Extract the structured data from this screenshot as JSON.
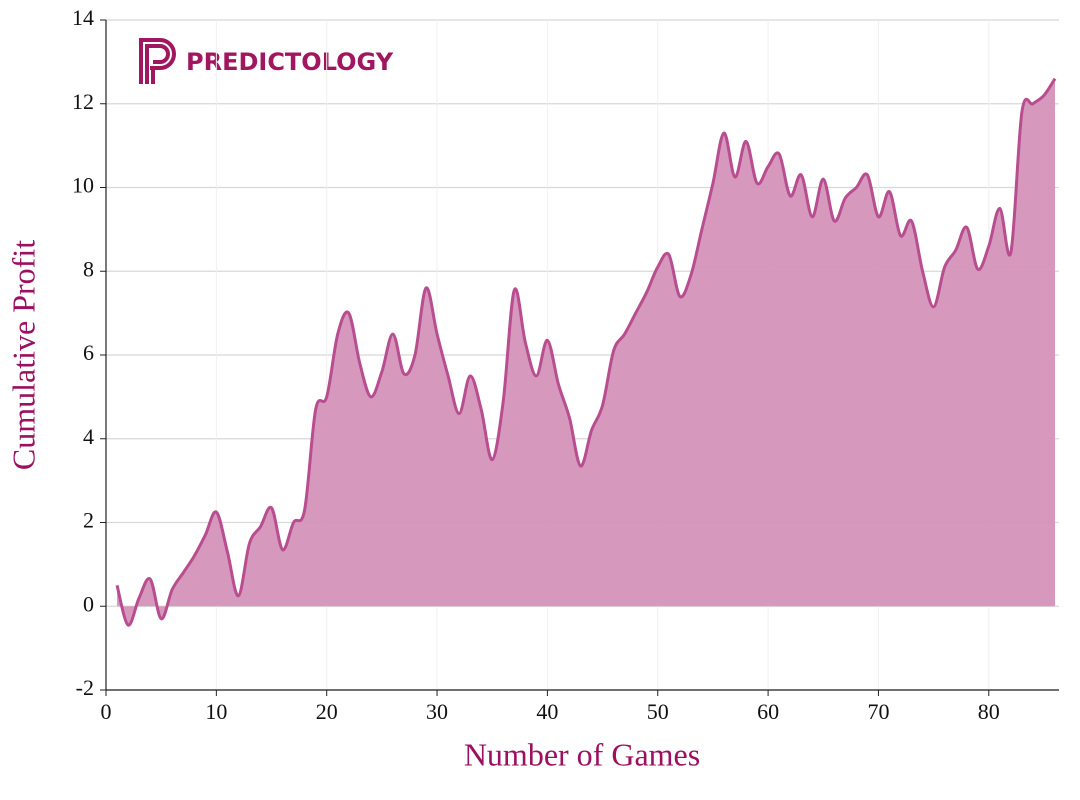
{
  "chart_data": {
    "type": "area",
    "logo": "PREDICTOLOGY",
    "xlabel": "Number of Games",
    "ylabel": "Cumulative Profit",
    "color": "#b84d8f",
    "fill": "#d494b9",
    "grid": true,
    "xlim": [
      0,
      86
    ],
    "ylim": [
      -2,
      14
    ],
    "xticks": [
      0,
      10,
      20,
      30,
      40,
      50,
      60,
      70,
      80
    ],
    "yticks": [
      -2,
      0,
      2,
      4,
      6,
      8,
      10,
      12,
      14
    ],
    "x": [
      1,
      2,
      3,
      4,
      5,
      6,
      7,
      8,
      9,
      10,
      11,
      12,
      13,
      14,
      15,
      16,
      17,
      18,
      19,
      20,
      21,
      22,
      23,
      24,
      25,
      26,
      27,
      28,
      29,
      30,
      31,
      32,
      33,
      34,
      35,
      36,
      37,
      38,
      39,
      40,
      41,
      42,
      43,
      44,
      45,
      46,
      47,
      48,
      49,
      50,
      51,
      52,
      53,
      54,
      55,
      56,
      57,
      58,
      59,
      60,
      61,
      62,
      63,
      64,
      65,
      66,
      67,
      68,
      69,
      70,
      71,
      72,
      73,
      74,
      75,
      76,
      77,
      78,
      79,
      80,
      81,
      82,
      83,
      84,
      85,
      86
    ],
    "values": [
      0.5,
      -0.45,
      0.2,
      0.65,
      -0.3,
      0.4,
      0.8,
      1.2,
      1.7,
      2.25,
      1.3,
      0.25,
      1.5,
      1.9,
      2.35,
      1.35,
      2.0,
      2.3,
      4.7,
      5.0,
      6.5,
      7.0,
      5.8,
      5.0,
      5.6,
      6.5,
      5.55,
      6.0,
      7.6,
      6.5,
      5.5,
      4.6,
      5.5,
      4.7,
      3.5,
      4.9,
      7.55,
      6.3,
      5.5,
      6.35,
      5.3,
      4.5,
      3.35,
      4.2,
      4.8,
      6.1,
      6.5,
      7.0,
      7.5,
      8.1,
      8.4,
      7.4,
      7.9,
      9.0,
      10.1,
      11.3,
      10.25,
      11.1,
      10.1,
      10.5,
      10.8,
      9.8,
      10.3,
      9.3,
      10.2,
      9.2,
      9.75,
      10.0,
      10.3,
      9.3,
      9.9,
      8.85,
      9.2,
      8.0,
      7.15,
      8.1,
      8.5,
      9.05,
      8.05,
      8.6,
      9.5,
      8.45,
      11.8,
      12.0,
      12.2,
      12.6
    ]
  }
}
